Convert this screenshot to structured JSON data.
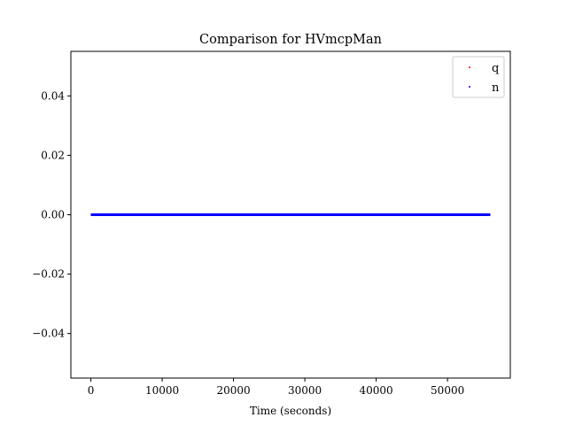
{
  "chart_data": {
    "type": "scatter",
    "title": "Comparison for HVmcpMan",
    "xlabel": "Time (seconds)",
    "ylabel": "",
    "xlim": [
      -2800,
      58800
    ],
    "ylim": [
      -0.055,
      0.055
    ],
    "x_ticks": [
      0,
      10000,
      20000,
      30000,
      40000,
      50000
    ],
    "y_ticks": [
      0.04,
      0.02,
      0.0,
      -0.02,
      -0.04
    ],
    "x_tick_labels": [
      "0",
      "10000",
      "20000",
      "30000",
      "40000",
      "50000"
    ],
    "y_tick_labels": [
      "0.04",
      "0.02",
      "0.00",
      "−0.02",
      "−0.04"
    ],
    "grid": false,
    "legend_position": "top-right",
    "series": [
      {
        "name": "q",
        "color": "#ff0000",
        "x_start": 0,
        "x_end": 56000,
        "value": 0
      },
      {
        "name": "n",
        "color": "#0000ff",
        "x_start": 0,
        "x_end": 56000,
        "value": 0
      }
    ]
  }
}
